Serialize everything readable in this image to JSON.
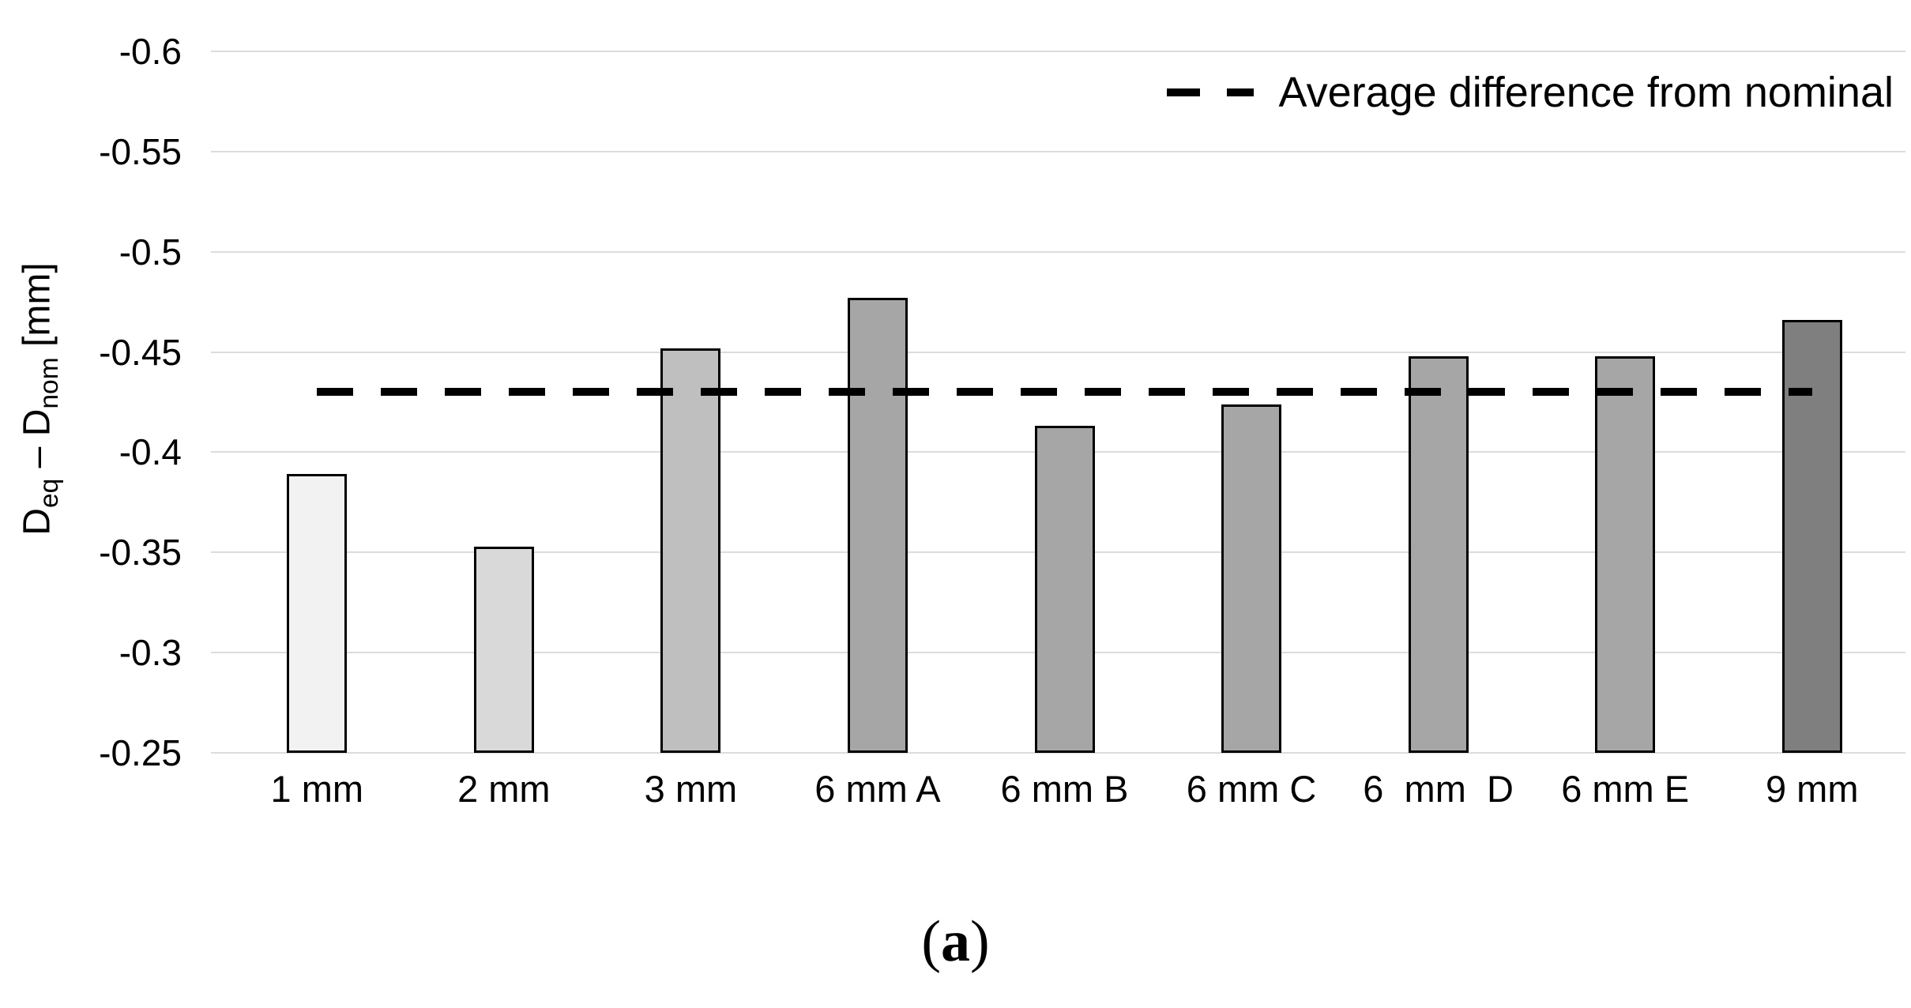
{
  "figure": {
    "caption_open": "(",
    "caption_letter": "a",
    "caption_close": ")"
  },
  "legend": {
    "label": "Average difference from nominal"
  },
  "chart_data": {
    "type": "bar",
    "title": "",
    "categories": [
      "1 mm",
      "2 mm",
      "3 mm",
      "6 mm A",
      "6 mm B",
      "6 mm C",
      "6  mm  D",
      "6 mm E",
      "9 mm"
    ],
    "values": [
      -0.389,
      -0.353,
      -0.452,
      -0.477,
      -0.413,
      -0.424,
      -0.448,
      -0.448,
      -0.466
    ],
    "bar_colors": [
      "#f2f2f2",
      "#d9d9d9",
      "#bfbfbf",
      "#a6a6a6",
      "#a6a6a6",
      "#a6a6a6",
      "#a6a6a6",
      "#a6a6a6",
      "#7f7f7f"
    ],
    "bar_outline_color": "#000000",
    "average_line": {
      "label": "Average difference from nominal",
      "value": -0.43,
      "style": "dashed",
      "color": "#000000"
    },
    "ylabel": "Deq − Dnom [mm]",
    "ylabel_parts": {
      "d1": "D",
      "d1_sub": "eq",
      "minus": " – ",
      "d2": "D",
      "d2_sub": "nom",
      "units": " [mm]"
    },
    "xlabel": "",
    "y_axis": {
      "top": -0.6,
      "bottom": -0.25,
      "tick_step": 0.05,
      "inverted": true,
      "tick_labels": [
        "-0.6",
        "-0.55",
        "-0.5",
        "-0.45",
        "-0.4",
        "-0.35",
        "-0.3",
        "-0.25"
      ]
    },
    "grid": true,
    "gridline_color": "#dcdcdc",
    "legend_position": "top-right"
  }
}
